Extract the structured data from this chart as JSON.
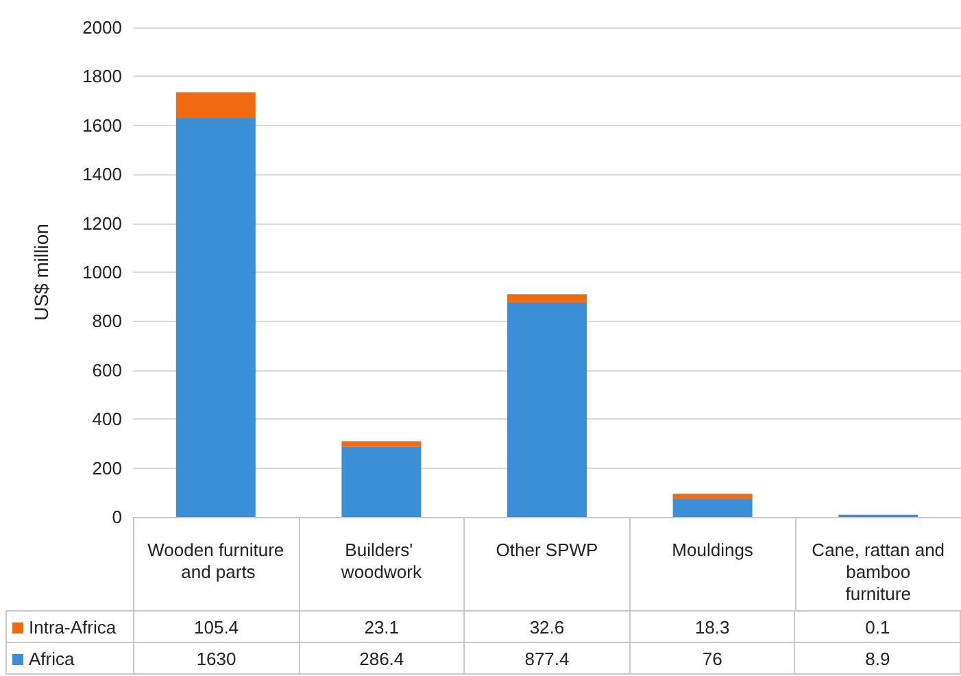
{
  "chart_data": {
    "type": "bar",
    "stacked": true,
    "ylabel": "US$ million",
    "categories": [
      "Wooden furniture and parts",
      "Builders' woodwork",
      "Other SPWP",
      "Mouldings",
      "Cane, rattan and bamboo furniture"
    ],
    "series": [
      {
        "name": "Africa",
        "color": "#3a8fd6",
        "values": [
          1630,
          286.4,
          877.4,
          76,
          8.9
        ]
      },
      {
        "name": "Intra-Africa",
        "color": "#f26a10",
        "values": [
          105.4,
          23.1,
          32.6,
          18.3,
          0.1
        ]
      }
    ],
    "ylim": [
      0,
      2000
    ],
    "yticks": [
      0,
      200,
      400,
      600,
      800,
      1000,
      1200,
      1400,
      1600,
      1800,
      2000
    ],
    "grid": "y",
    "legend": "bottom left",
    "data_labels": true
  }
}
